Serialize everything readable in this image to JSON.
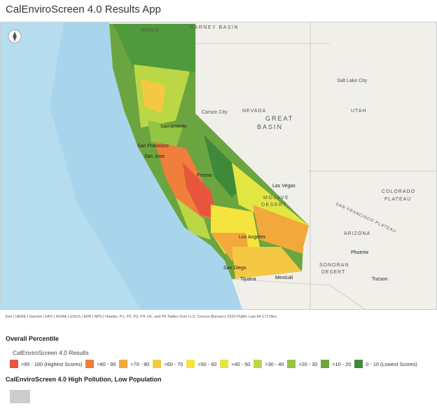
{
  "header": {
    "title": "CalEnviroScreen 4.0 Results App"
  },
  "map": {
    "labels": [
      "Medford",
      "HARNEY BASIN",
      "Carson City",
      "NEVADA",
      "GREAT",
      "BASIN",
      "Sacramento",
      "San Francisco",
      "San Jose",
      "Fresno",
      "Las Vegas",
      "MOJAVE",
      "DESERT",
      "Los Angeles",
      "San Diego",
      "Tijuana",
      "Mexicali",
      "Salt Lake City",
      "UTAH",
      "COLORADO",
      "PLATEAU",
      "SAN FRANCISCO PLATEAU",
      "ARIZONA",
      "Phoenix",
      "SONORAN",
      "DESERT",
      "Tucson"
    ],
    "attribution": "Esri | HERE | Garmin | FAO | NOAA | USGS | EPA | NPS | Header, P1, P2, P3, P4, H1, and P5 Tables from U.S. Census Bureau's 2020 Public Law 94-171 files."
  },
  "legend": {
    "title": "Overall Percentile",
    "layer": "CalEnviroScreen 4.0 Results",
    "items": [
      {
        "label": ">90 - 100 (Highest Scores)",
        "color": "#e8553e"
      },
      {
        "label": ">80 - 90",
        "color": "#ef7f3a"
      },
      {
        "label": ">70 - 80",
        "color": "#f2a93b"
      },
      {
        "label": ">60 - 70",
        "color": "#f5c844"
      },
      {
        "label": ">50 - 60",
        "color": "#f5e43e"
      },
      {
        "label": ">40 - 50",
        "color": "#e2e640"
      },
      {
        "label": ">30 - 40",
        "color": "#bcd746"
      },
      {
        "label": ">20 - 30",
        "color": "#94c444"
      },
      {
        "label": ">10 - 20",
        "color": "#6ba53f"
      },
      {
        "label": "0 - 10 (Lowest Scores)",
        "color": "#3f8a3a"
      }
    ]
  },
  "legend2": {
    "title": "CalEnviroScreen 4.0 High Pollution, Low Population",
    "color": "#cccccc"
  }
}
